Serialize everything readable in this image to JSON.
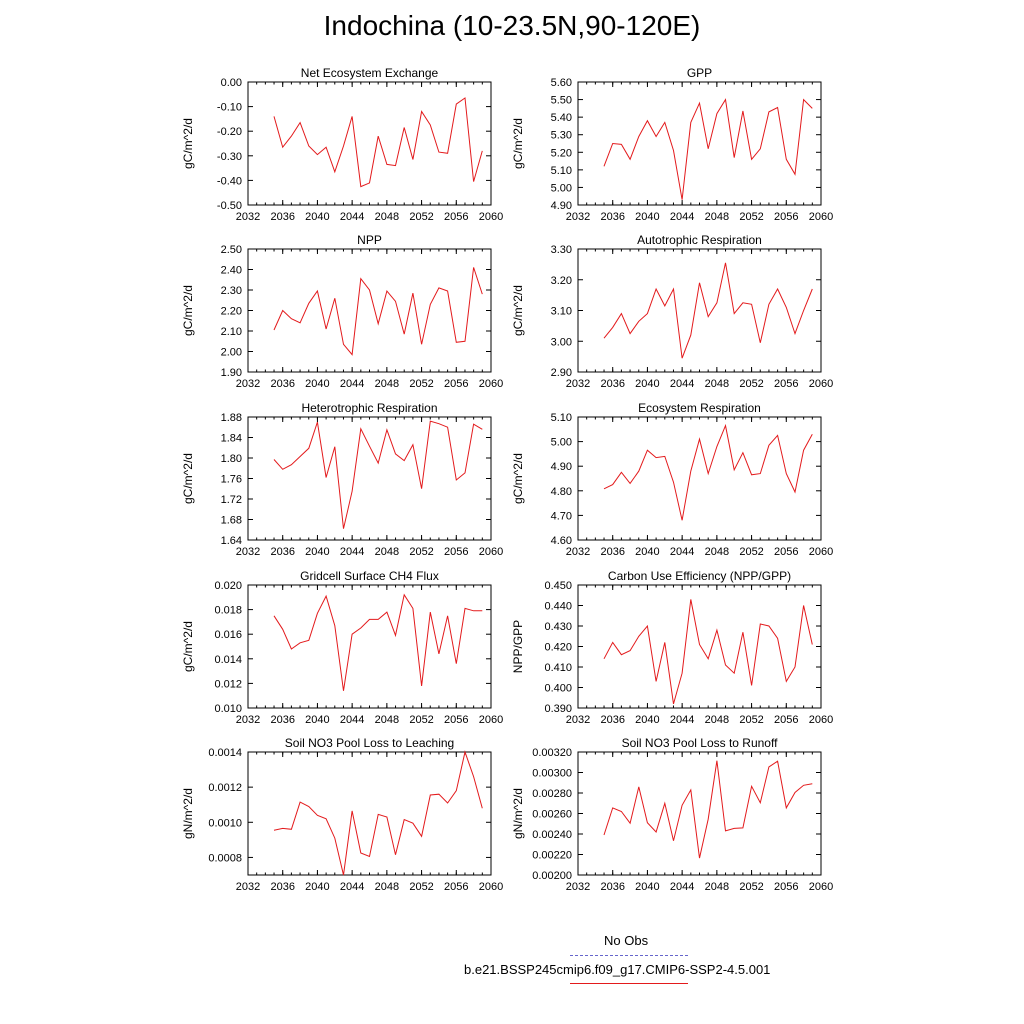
{
  "title": "Indochina (10-23.5N,90-120E)",
  "legend": [
    {
      "label": "No Obs",
      "color": "#6666cc",
      "style": "dashed"
    },
    {
      "label": "b.e21.BSSP245cmip6.f09_g17.CMIP6-SSP2-4.5.001",
      "color": "#e31a1c",
      "style": "solid"
    }
  ],
  "chart_data": [
    {
      "type": "line",
      "title": "Net Ecosystem Exchange",
      "ylabel": "gC/m^2/d",
      "xlim": [
        2032,
        2060
      ],
      "ylim": [
        -0.5,
        0.0
      ],
      "xticks": [
        "2032",
        "2036",
        "2040",
        "2044",
        "2048",
        "2052",
        "2056",
        "2060"
      ],
      "yticks": [
        "-0.50",
        "-0.40",
        "-0.30",
        "-0.20",
        "-0.10",
        "0.00"
      ],
      "x": [
        2035,
        2036,
        2037,
        2038,
        2039,
        2040,
        2041,
        2042,
        2043,
        2044,
        2045,
        2046,
        2047,
        2048,
        2049,
        2050,
        2051,
        2052,
        2053,
        2054,
        2055,
        2056,
        2057,
        2058,
        2059
      ],
      "y": [
        -0.14,
        -0.265,
        -0.22,
        -0.165,
        -0.26,
        -0.295,
        -0.265,
        -0.365,
        -0.26,
        -0.14,
        -0.425,
        -0.41,
        -0.22,
        -0.335,
        -0.34,
        -0.185,
        -0.315,
        -0.12,
        -0.175,
        -0.285,
        -0.29,
        -0.09,
        -0.065,
        -0.405,
        -0.28
      ]
    },
    {
      "type": "line",
      "title": "GPP",
      "ylabel": "gC/m^2/d",
      "xlim": [
        2032,
        2060
      ],
      "ylim": [
        4.9,
        5.6
      ],
      "xticks": [
        "2032",
        "2036",
        "2040",
        "2044",
        "2048",
        "2052",
        "2056",
        "2060"
      ],
      "yticks": [
        "4.90",
        "5.00",
        "5.10",
        "5.20",
        "5.30",
        "5.40",
        "5.50",
        "5.60"
      ],
      "x": [
        2035,
        2036,
        2037,
        2038,
        2039,
        2040,
        2041,
        2042,
        2043,
        2044,
        2045,
        2046,
        2047,
        2048,
        2049,
        2050,
        2051,
        2052,
        2053,
        2054,
        2055,
        2056,
        2057,
        2058,
        2059
      ],
      "y": [
        5.12,
        5.25,
        5.245,
        5.16,
        5.29,
        5.38,
        5.29,
        5.37,
        5.21,
        4.93,
        5.37,
        5.48,
        5.22,
        5.42,
        5.5,
        5.17,
        5.435,
        5.16,
        5.22,
        5.43,
        5.455,
        5.16,
        5.075,
        5.5,
        5.45
      ]
    },
    {
      "type": "line",
      "title": "NPP",
      "ylabel": "gC/m^2/d",
      "xlim": [
        2032,
        2060
      ],
      "ylim": [
        1.9,
        2.5
      ],
      "xticks": [
        "2032",
        "2036",
        "2040",
        "2044",
        "2048",
        "2052",
        "2056",
        "2060"
      ],
      "yticks": [
        "1.90",
        "2.00",
        "2.10",
        "2.20",
        "2.30",
        "2.40",
        "2.50"
      ],
      "x": [
        2035,
        2036,
        2037,
        2038,
        2039,
        2040,
        2041,
        2042,
        2043,
        2044,
        2045,
        2046,
        2047,
        2048,
        2049,
        2050,
        2051,
        2052,
        2053,
        2054,
        2055,
        2056,
        2057,
        2058,
        2059
      ],
      "y": [
        2.105,
        2.2,
        2.16,
        2.14,
        2.235,
        2.295,
        2.11,
        2.26,
        2.035,
        1.985,
        2.355,
        2.3,
        2.135,
        2.295,
        2.245,
        2.085,
        2.285,
        2.035,
        2.23,
        2.31,
        2.295,
        2.045,
        2.05,
        2.41,
        2.28
      ]
    },
    {
      "type": "line",
      "title": "Autotrophic Respiration",
      "ylabel": "gC/m^2/d",
      "xlim": [
        2032,
        2060
      ],
      "ylim": [
        2.9,
        3.3
      ],
      "xticks": [
        "2032",
        "2036",
        "2040",
        "2044",
        "2048",
        "2052",
        "2056",
        "2060"
      ],
      "yticks": [
        "2.90",
        "3.00",
        "3.10",
        "3.20",
        "3.30"
      ],
      "x": [
        2035,
        2036,
        2037,
        2038,
        2039,
        2040,
        2041,
        2042,
        2043,
        2044,
        2045,
        2046,
        2047,
        2048,
        2049,
        2050,
        2051,
        2052,
        2053,
        2054,
        2055,
        2056,
        2057,
        2058,
        2059
      ],
      "y": [
        3.01,
        3.045,
        3.09,
        3.025,
        3.065,
        3.09,
        3.17,
        3.115,
        3.17,
        2.945,
        3.02,
        3.19,
        3.08,
        3.125,
        3.255,
        3.09,
        3.125,
        3.12,
        2.995,
        3.12,
        3.17,
        3.11,
        3.025,
        3.1,
        3.17
      ]
    },
    {
      "type": "line",
      "title": "Heterotrophic Respiration",
      "ylabel": "gC/m^2/d",
      "xlim": [
        2032,
        2060
      ],
      "ylim": [
        1.64,
        1.88
      ],
      "xticks": [
        "2032",
        "2036",
        "2040",
        "2044",
        "2048",
        "2052",
        "2056",
        "2060"
      ],
      "yticks": [
        "1.64",
        "1.68",
        "1.72",
        "1.76",
        "1.80",
        "1.84",
        "1.88"
      ],
      "x": [
        2035,
        2036,
        2037,
        2038,
        2039,
        2040,
        2041,
        2042,
        2043,
        2044,
        2045,
        2046,
        2047,
        2048,
        2049,
        2050,
        2051,
        2052,
        2053,
        2054,
        2055,
        2056,
        2057,
        2058,
        2059
      ],
      "y": [
        1.797,
        1.778,
        1.787,
        1.803,
        1.819,
        1.87,
        1.762,
        1.822,
        1.662,
        1.735,
        1.857,
        1.823,
        1.79,
        1.855,
        1.808,
        1.795,
        1.826,
        1.74,
        1.872,
        1.867,
        1.86,
        1.757,
        1.771,
        1.866,
        1.856
      ]
    },
    {
      "type": "line",
      "title": "Ecosystem Respiration",
      "ylabel": "gC/m^2/d",
      "xlim": [
        2032,
        2060
      ],
      "ylim": [
        4.6,
        5.1
      ],
      "xticks": [
        "2032",
        "2036",
        "2040",
        "2044",
        "2048",
        "2052",
        "2056",
        "2060"
      ],
      "yticks": [
        "4.60",
        "4.70",
        "4.80",
        "4.90",
        "5.00",
        "5.10"
      ],
      "x": [
        2035,
        2036,
        2037,
        2038,
        2039,
        2040,
        2041,
        2042,
        2043,
        2044,
        2045,
        2046,
        2047,
        2048,
        2049,
        2050,
        2051,
        2052,
        2053,
        2054,
        2055,
        2056,
        2057,
        2058,
        2059
      ],
      "y": [
        4.808,
        4.825,
        4.875,
        4.83,
        4.88,
        4.965,
        4.935,
        4.94,
        4.835,
        4.68,
        4.88,
        5.01,
        4.87,
        4.98,
        5.065,
        4.885,
        4.955,
        4.865,
        4.87,
        4.985,
        5.025,
        4.87,
        4.795,
        4.965,
        5.03
      ]
    },
    {
      "type": "line",
      "title": "Gridcell Surface CH4 Flux",
      "ylabel": "gC/m^2/d",
      "xlim": [
        2032,
        2060
      ],
      "ylim": [
        0.01,
        0.02
      ],
      "xticks": [
        "2032",
        "2036",
        "2040",
        "2044",
        "2048",
        "2052",
        "2056",
        "2060"
      ],
      "yticks": [
        "0.010",
        "0.012",
        "0.014",
        "0.016",
        "0.018",
        "0.020"
      ],
      "x": [
        2035,
        2036,
        2037,
        2038,
        2039,
        2040,
        2041,
        2042,
        2043,
        2044,
        2045,
        2046,
        2047,
        2048,
        2049,
        2050,
        2051,
        2052,
        2053,
        2054,
        2055,
        2056,
        2057,
        2058,
        2059
      ],
      "y": [
        0.0175,
        0.0164,
        0.0148,
        0.0153,
        0.0155,
        0.0177,
        0.0191,
        0.0167,
        0.0114,
        0.016,
        0.0165,
        0.0172,
        0.0172,
        0.0178,
        0.0159,
        0.0192,
        0.0181,
        0.0118,
        0.0178,
        0.0144,
        0.0175,
        0.0136,
        0.0181,
        0.0179,
        0.0179
      ]
    },
    {
      "type": "line",
      "title": "Carbon Use Efficiency (NPP/GPP)",
      "ylabel": "NPP/GPP",
      "xlim": [
        2032,
        2060
      ],
      "ylim": [
        0.39,
        0.45
      ],
      "xticks": [
        "2032",
        "2036",
        "2040",
        "2044",
        "2048",
        "2052",
        "2056",
        "2060"
      ],
      "yticks": [
        "0.390",
        "0.400",
        "0.410",
        "0.420",
        "0.430",
        "0.440",
        "0.450"
      ],
      "x": [
        2035,
        2036,
        2037,
        2038,
        2039,
        2040,
        2041,
        2042,
        2043,
        2044,
        2045,
        2046,
        2047,
        2048,
        2049,
        2050,
        2051,
        2052,
        2053,
        2054,
        2055,
        2056,
        2057,
        2058,
        2059
      ],
      "y": [
        0.414,
        0.422,
        0.416,
        0.418,
        0.425,
        0.43,
        0.403,
        0.422,
        0.392,
        0.407,
        0.443,
        0.421,
        0.414,
        0.428,
        0.411,
        0.407,
        0.427,
        0.401,
        0.431,
        0.43,
        0.424,
        0.403,
        0.41,
        0.44,
        0.421
      ]
    },
    {
      "type": "line",
      "title": "Soil NO3 Pool Loss to Leaching",
      "ylabel": "gN/m^2/d",
      "xlim": [
        2032,
        2060
      ],
      "ylim": [
        0.0007,
        0.0014
      ],
      "xticks": [
        "2032",
        "2036",
        "2040",
        "2044",
        "2048",
        "2052",
        "2056",
        "2060"
      ],
      "yticks": [
        "0.0008",
        "0.0010",
        "0.0012",
        "0.0014"
      ],
      "x": [
        2035,
        2036,
        2037,
        2038,
        2039,
        2040,
        2041,
        2042,
        2043,
        2044,
        2045,
        2046,
        2047,
        2048,
        2049,
        2050,
        2051,
        2052,
        2053,
        2054,
        2055,
        2056,
        2057,
        2058,
        2059
      ],
      "y": [
        0.000955,
        0.000965,
        0.00096,
        0.001115,
        0.00109,
        0.00104,
        0.00102,
        0.00091,
        0.0007,
        0.001065,
        0.000825,
        0.000805,
        0.001045,
        0.00103,
        0.000815,
        0.001015,
        0.000995,
        0.00092,
        0.001155,
        0.00116,
        0.00111,
        0.00118,
        0.0014,
        0.00126,
        0.00108
      ]
    },
    {
      "type": "line",
      "title": "Soil NO3 Pool Loss to Runoff",
      "ylabel": "gN/m^2/d",
      "xlim": [
        2032,
        2060
      ],
      "ylim": [
        0.002,
        0.0032
      ],
      "xticks": [
        "2032",
        "2036",
        "2040",
        "2044",
        "2048",
        "2052",
        "2056",
        "2060"
      ],
      "yticks": [
        "0.00200",
        "0.00220",
        "0.00240",
        "0.00260",
        "0.00280",
        "0.00300",
        "0.00320"
      ],
      "x": [
        2035,
        2036,
        2037,
        2038,
        2039,
        2040,
        2041,
        2042,
        2043,
        2044,
        2045,
        2046,
        2047,
        2048,
        2049,
        2050,
        2051,
        2052,
        2053,
        2054,
        2055,
        2056,
        2057,
        2058,
        2059
      ],
      "y": [
        0.00239,
        0.002655,
        0.00262,
        0.002505,
        0.00286,
        0.00251,
        0.00242,
        0.0027,
        0.002335,
        0.00268,
        0.00283,
        0.002165,
        0.002545,
        0.003115,
        0.00243,
        0.002455,
        0.00246,
        0.002865,
        0.002705,
        0.003055,
        0.00311,
        0.002655,
        0.002805,
        0.002875,
        0.00289
      ]
    }
  ]
}
